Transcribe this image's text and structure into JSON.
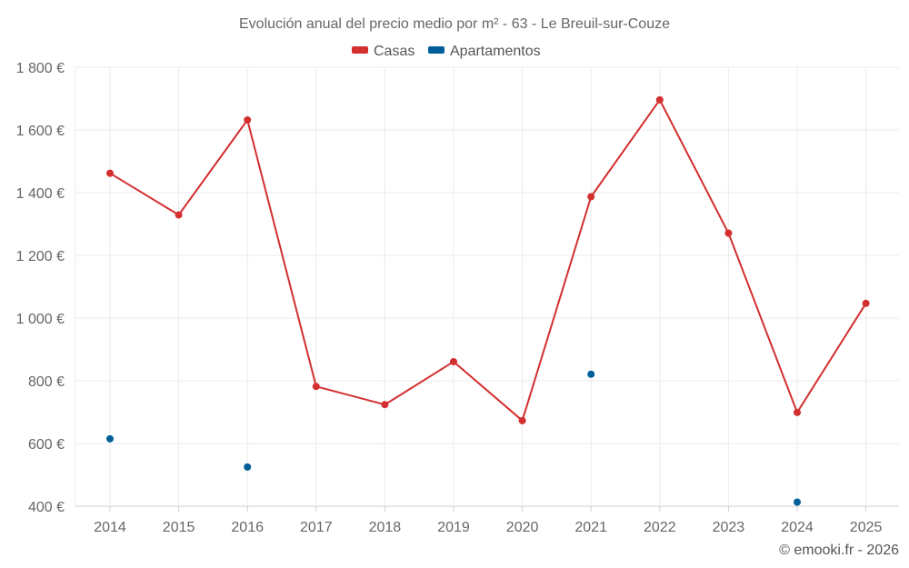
{
  "chart_data": {
    "type": "line",
    "title": "Evolución anual del precio medio por m² - 63 - Le Breuil-sur-Couze",
    "categories": [
      "2014",
      "2015",
      "2016",
      "2017",
      "2018",
      "2019",
      "2020",
      "2021",
      "2022",
      "2023",
      "2024",
      "2025"
    ],
    "y_ticks": [
      "400 €",
      "600 €",
      "800 €",
      "1 000 €",
      "1 200 €",
      "1 400 €",
      "1 600 €",
      "1 800 €"
    ],
    "ylim": [
      400,
      1800
    ],
    "series": [
      {
        "name": "Casas",
        "color": "#d32f2f",
        "mode": "line+markers",
        "values": [
          1462,
          1329,
          1632,
          782,
          724,
          861,
          673,
          1387,
          1696,
          1271,
          699,
          1047
        ]
      },
      {
        "name": "Apartamentos",
        "color": "#005f99",
        "mode": "markers",
        "values": [
          615,
          null,
          525,
          null,
          null,
          null,
          null,
          821,
          null,
          null,
          413,
          null
        ]
      }
    ],
    "legend_position": "top-center",
    "credit": "© emooki.fr - 2026"
  }
}
